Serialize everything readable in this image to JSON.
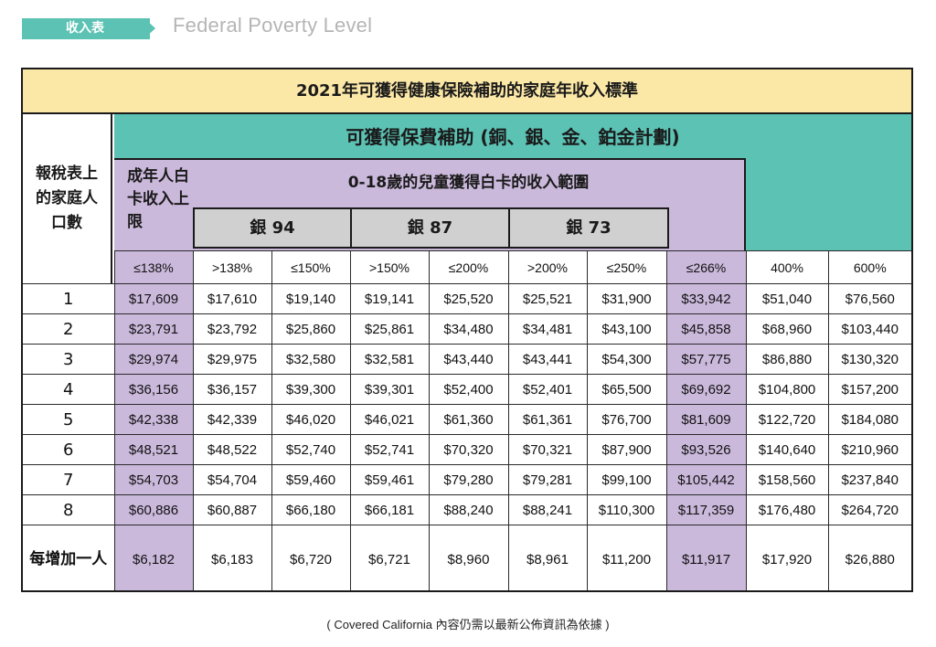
{
  "header": {
    "tag": "收入表",
    "title": "Federal Poverty Level"
  },
  "table": {
    "title": "2021年可獲得健康保險補助的家庭年收入標準",
    "household_header": "報稅表上的家庭人口數",
    "subsidy_header": "可獲得保費補助 (銅、銀、金、鉑金計劃)",
    "adult_header": "成年人白卡收入上限",
    "child_header": "0-18歲的兒童獲得白卡的收入範圍",
    "silver_groups": [
      "銀 94",
      "銀 87",
      "銀 73"
    ],
    "percent_headers": [
      "≤138%",
      ">138%",
      "≤150%",
      ">150%",
      "≤200%",
      ">200%",
      "≤250%",
      "≤266%",
      "400%",
      "600%"
    ],
    "rows": [
      {
        "size": "1",
        "values": [
          "$17,609",
          "$17,610",
          "$19,140",
          "$19,141",
          "$25,520",
          "$25,521",
          "$31,900",
          "$33,942",
          "$51,040",
          "$76,560"
        ]
      },
      {
        "size": "2",
        "values": [
          "$23,791",
          "$23,792",
          "$25,860",
          "$25,861",
          "$34,480",
          "$34,481",
          "$43,100",
          "$45,858",
          "$68,960",
          "$103,440"
        ]
      },
      {
        "size": "3",
        "values": [
          "$29,974",
          "$29,975",
          "$32,580",
          "$32,581",
          "$43,440",
          "$43,441",
          "$54,300",
          "$57,775",
          "$86,880",
          "$130,320"
        ]
      },
      {
        "size": "4",
        "values": [
          "$36,156",
          "$36,157",
          "$39,300",
          "$39,301",
          "$52,400",
          "$52,401",
          "$65,500",
          "$69,692",
          "$104,800",
          "$157,200"
        ]
      },
      {
        "size": "5",
        "values": [
          "$42,338",
          "$42,339",
          "$46,020",
          "$46,021",
          "$61,360",
          "$61,361",
          "$76,700",
          "$81,609",
          "$122,720",
          "$184,080"
        ]
      },
      {
        "size": "6",
        "values": [
          "$48,521",
          "$48,522",
          "$52,740",
          "$52,741",
          "$70,320",
          "$70,321",
          "$87,900",
          "$93,526",
          "$140,640",
          "$210,960"
        ]
      },
      {
        "size": "7",
        "values": [
          "$54,703",
          "$54,704",
          "$59,460",
          "$59,461",
          "$79,280",
          "$79,281",
          "$99,100",
          "$105,442",
          "$158,560",
          "$237,840"
        ]
      },
      {
        "size": "8",
        "values": [
          "$60,886",
          "$60,887",
          "$66,180",
          "$66,181",
          "$88,240",
          "$88,241",
          "$110,300",
          "$117,359",
          "$176,480",
          "$264,720"
        ]
      }
    ],
    "extra_row": {
      "label": "每增加一人",
      "values": [
        "$6,182",
        "$6,183",
        "$6,720",
        "$6,721",
        "$8,960",
        "$8,961",
        "$11,200",
        "$11,917",
        "$17,920",
        "$26,880"
      ]
    }
  },
  "footnote": "( Covered California 內容仍需以最新公佈資訊為依據 )",
  "colors": {
    "teal": "#5cc2b4",
    "yellow": "#fbe7a6",
    "lavender": "#cbb9dc",
    "silver_gray": "#d0d0d0"
  }
}
